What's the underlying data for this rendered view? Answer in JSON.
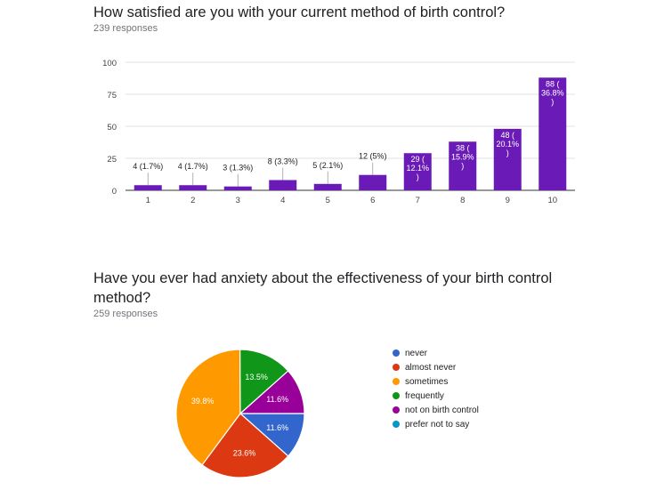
{
  "charts": [
    {
      "title": "How satisfied are you with your current method of birth control?",
      "responses": "239 responses"
    },
    {
      "title": "Have you ever had anxiety about the effectiveness of your birth control method?",
      "responses": "259 responses"
    }
  ],
  "chart_data": [
    {
      "type": "bar",
      "title": "How satisfied are you with your current method of birth control?",
      "subtitle": "239 responses",
      "categories": [
        "1",
        "2",
        "3",
        "4",
        "5",
        "6",
        "7",
        "8",
        "9",
        "10"
      ],
      "values": [
        4,
        4,
        3,
        8,
        5,
        12,
        29,
        38,
        48,
        88
      ],
      "labels": [
        "4 (1.7%)",
        "4 (1.7%)",
        "3 (1.3%)",
        "8 (3.3%)",
        "5 (2.1%)",
        "12 (5%)",
        [
          "29 (",
          "12.1%",
          ")"
        ],
        [
          "38 (",
          "15.9%",
          ")"
        ],
        [
          "48 (",
          "20.1%",
          ")"
        ],
        [
          "88 (",
          "36.8%",
          ")"
        ]
      ],
      "yticks": [
        0,
        25,
        50,
        75,
        100
      ],
      "ylim": [
        0,
        100
      ],
      "grid": true,
      "color": "#6a1ab6"
    },
    {
      "type": "pie",
      "title": "Have you ever had anxiety about the effectiveness of your birth control method?",
      "subtitle": "259 responses",
      "slices": [
        {
          "label": "never",
          "value": 11.6,
          "display": "11.6%",
          "color": "#3366cc"
        },
        {
          "label": "almost never",
          "value": 23.6,
          "display": "23.6%",
          "color": "#dc3912"
        },
        {
          "label": "sometimes",
          "value": 39.8,
          "display": "39.8%",
          "color": "#ff9900"
        },
        {
          "label": "frequently",
          "value": 13.5,
          "display": "13.5%",
          "color": "#109618"
        },
        {
          "label": "not on birth control",
          "value": 11.6,
          "display": "11.6%",
          "color": "#990099"
        },
        {
          "label": "prefer not to say",
          "value": 0,
          "display": "",
          "color": "#0099c6"
        }
      ],
      "legend_position": "right"
    }
  ]
}
